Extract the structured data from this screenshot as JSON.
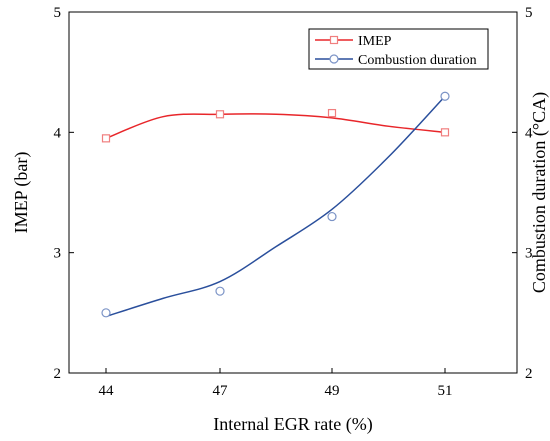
{
  "chart_data": {
    "type": "line",
    "x_axis": {
      "label": "Internal EGR rate (%)",
      "categories": [
        "44",
        "47",
        "49",
        "51"
      ]
    },
    "y_left": {
      "label": "IMEP (bar)",
      "ylim": [
        2,
        5
      ],
      "ticks": [
        "2",
        "3",
        "4",
        "5"
      ]
    },
    "y_right": {
      "label": "Combustion duration (°CA)",
      "ylim": [
        2,
        5
      ],
      "ticks": [
        "2",
        "3",
        "4",
        "5"
      ]
    },
    "series": [
      {
        "name": "IMEP",
        "axis": "left",
        "marker": "square",
        "color": "#e8262a",
        "marker_color": "#f07f7f",
        "values": [
          3.95,
          4.15,
          4.16,
          4.0
        ],
        "fit": [
          3.95,
          4.13,
          4.15,
          4.15,
          4.12,
          4.05,
          4.0
        ]
      },
      {
        "name": "Combustion duration",
        "axis": "right",
        "marker": "circle",
        "color": "#2a4f9c",
        "marker_color": "#7b93c6",
        "values": [
          2.5,
          2.68,
          3.3,
          4.3
        ],
        "fit": [
          2.47,
          2.62,
          2.76,
          3.05,
          3.36,
          3.8,
          4.3
        ]
      }
    ],
    "grid": false,
    "legend_position": "top-right"
  }
}
